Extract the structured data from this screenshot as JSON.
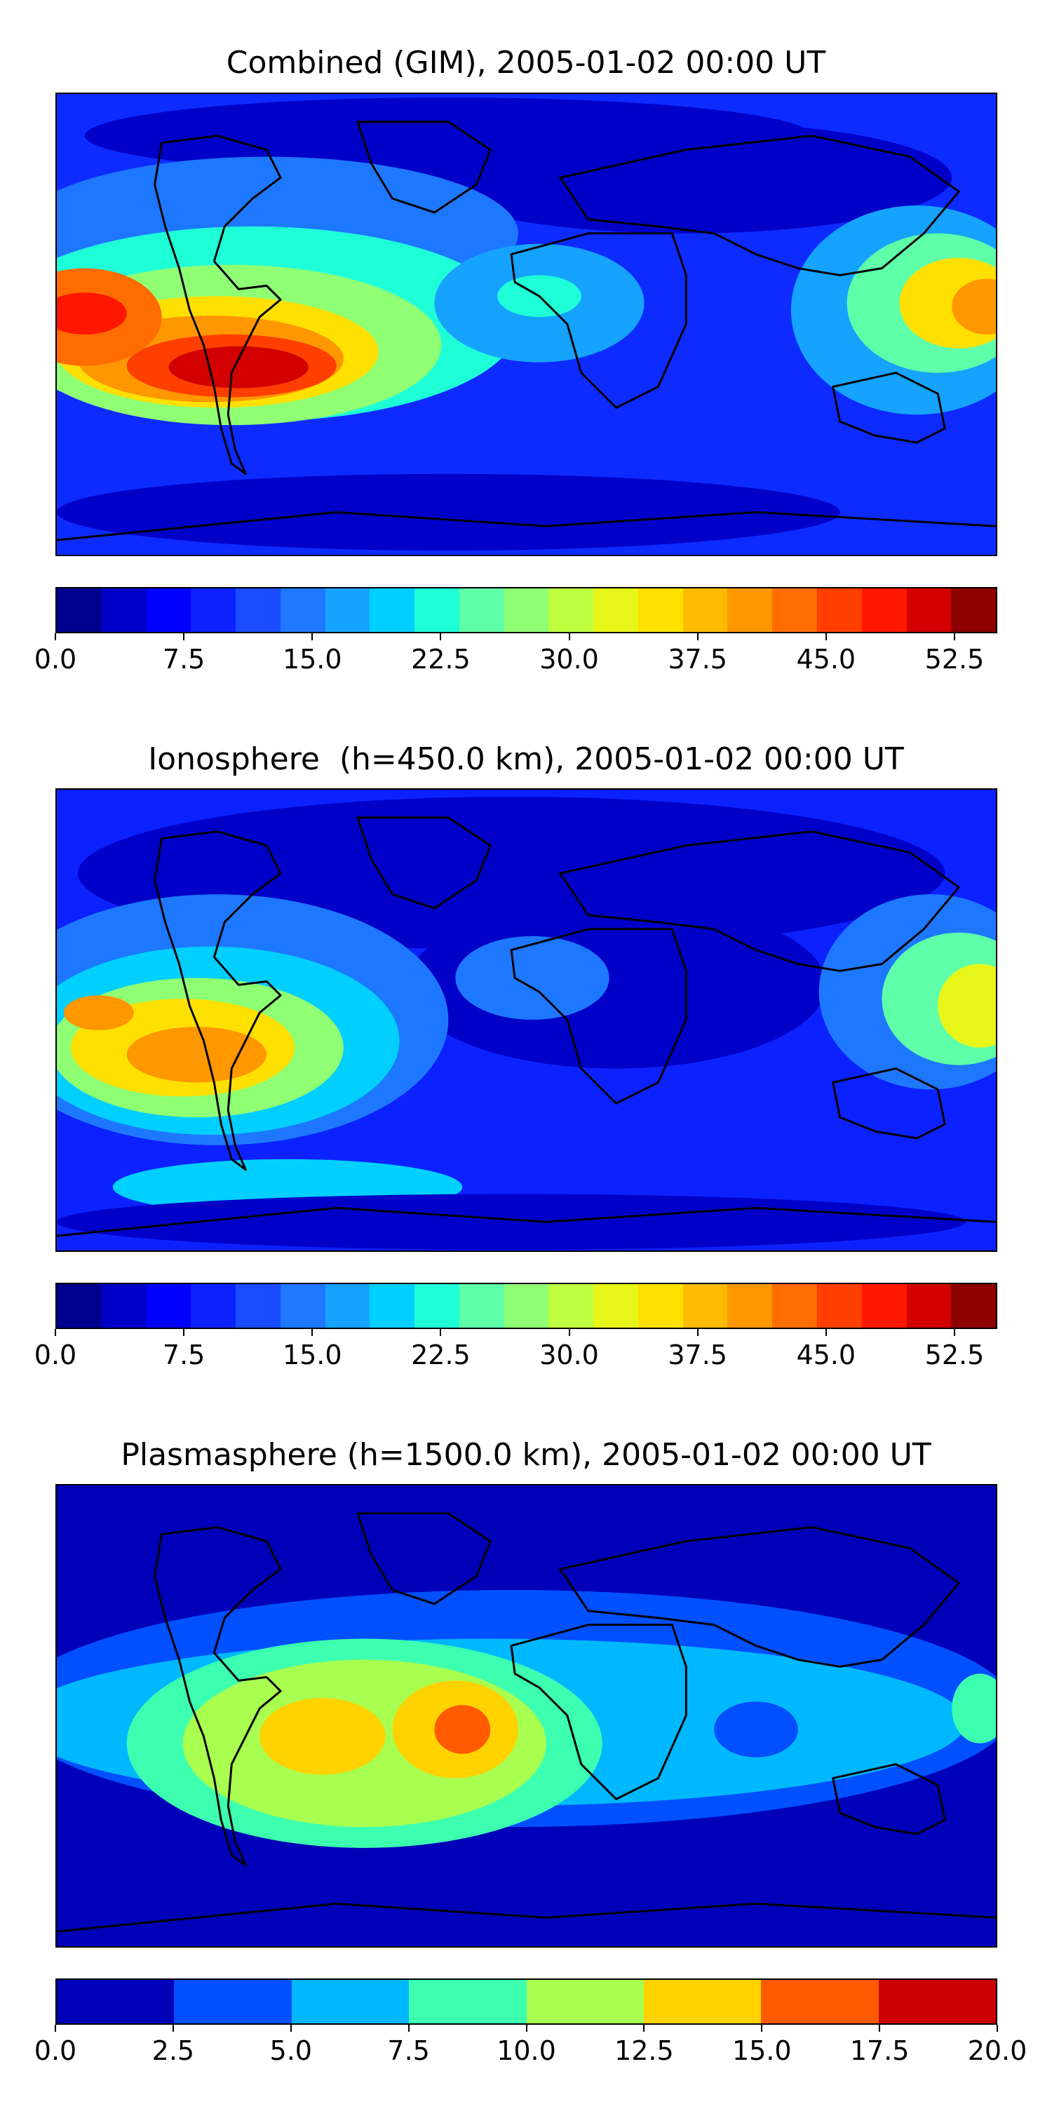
{
  "panels": [
    {
      "title": "Combined (GIM), 2005-01-02 00:00 UT",
      "colorbar": {
        "colors": [
          "#00008f",
          "#0000c8",
          "#0000ff",
          "#0b22ff",
          "#1a4cff",
          "#1e78ff",
          "#15a3ff",
          "#00cfff",
          "#1effd8",
          "#5effa8",
          "#8fff74",
          "#bfff40",
          "#e8f518",
          "#ffe000",
          "#ffbb00",
          "#ff9700",
          "#ff6c00",
          "#ff3f00",
          "#ff1700",
          "#d20000",
          "#8c0000"
        ],
        "ticks": [
          "0.0",
          "7.5",
          "15.0",
          "22.5",
          "30.0",
          "37.5",
          "45.0",
          "52.5"
        ],
        "tick_values": [
          0,
          7.5,
          15,
          22.5,
          30,
          37.5,
          45,
          52.5
        ],
        "range": [
          0,
          55
        ]
      }
    },
    {
      "title": "Ionosphere  (h=450.0 km), 2005-01-02 00:00 UT",
      "colorbar": {
        "colors": [
          "#00008f",
          "#0000c8",
          "#0000ff",
          "#0b22ff",
          "#1a4cff",
          "#1e78ff",
          "#15a3ff",
          "#00cfff",
          "#1effd8",
          "#5effa8",
          "#8fff74",
          "#bfff40",
          "#e8f518",
          "#ffe000",
          "#ffbb00",
          "#ff9700",
          "#ff6c00",
          "#ff3f00",
          "#ff1700",
          "#d20000",
          "#8c0000"
        ],
        "ticks": [
          "0.0",
          "7.5",
          "15.0",
          "22.5",
          "30.0",
          "37.5",
          "45.0",
          "52.5"
        ],
        "tick_values": [
          0,
          7.5,
          15,
          22.5,
          30,
          37.5,
          45,
          52.5
        ],
        "range": [
          0,
          55
        ]
      }
    },
    {
      "title": "Plasmasphere (h=1500.0 km), 2005-01-02 00:00 UT",
      "colorbar": {
        "colors": [
          "#0000b8",
          "#0050ff",
          "#00b8ff",
          "#3cffb0",
          "#a8ff50",
          "#ffd200",
          "#ff5a00",
          "#cc0000"
        ],
        "ticks": [
          "0.0",
          "2.5",
          "5.0",
          "7.5",
          "10.0",
          "12.5",
          "15.0",
          "17.5",
          "20.0"
        ],
        "tick_values": [
          0,
          2.5,
          5,
          7.5,
          10,
          12.5,
          15,
          17.5,
          20
        ],
        "range": [
          0,
          20
        ]
      }
    }
  ]
}
